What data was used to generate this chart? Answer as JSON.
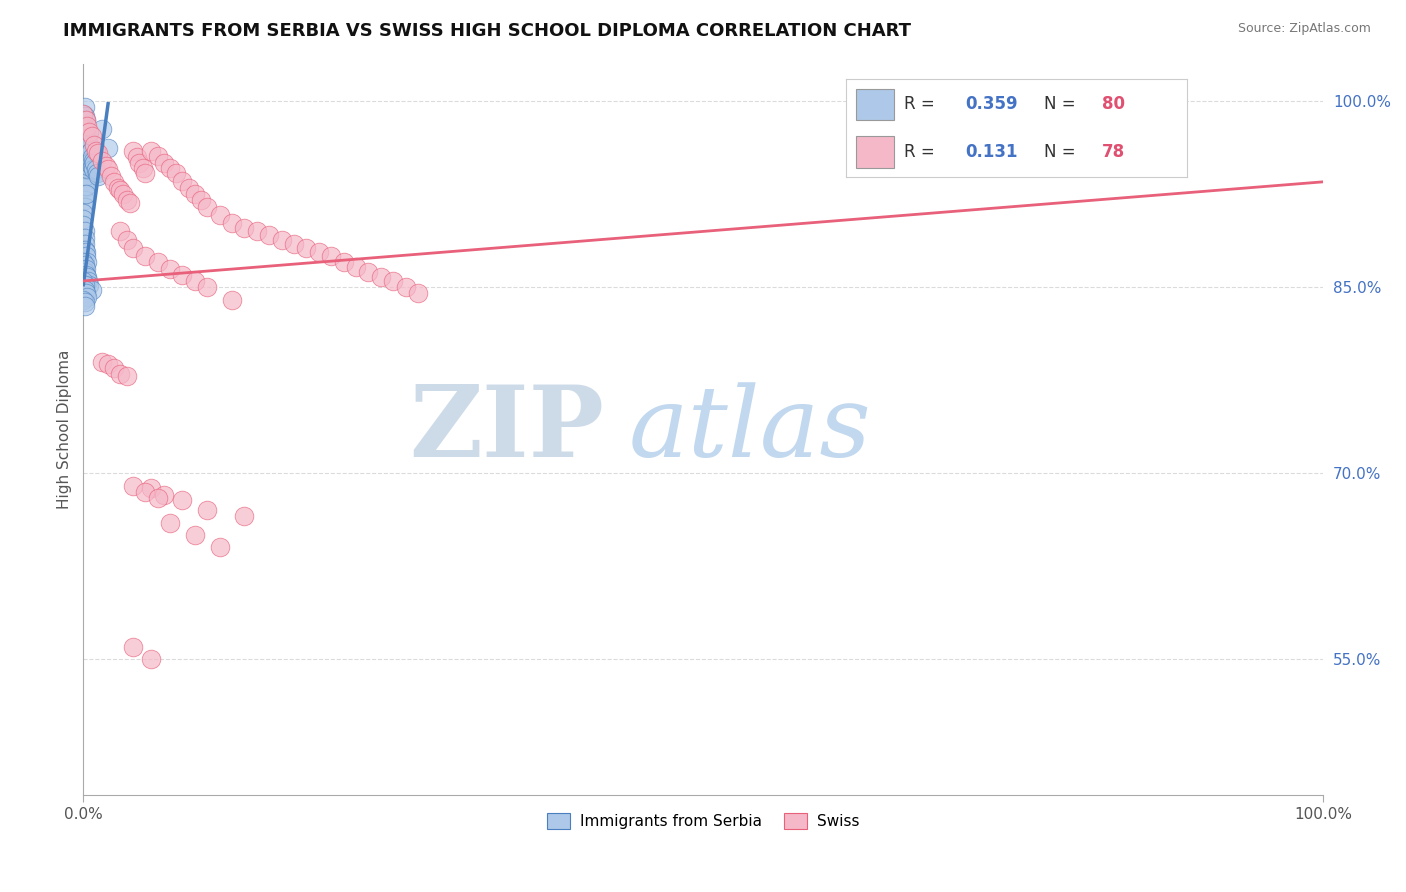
{
  "title": "IMMIGRANTS FROM SERBIA VS SWISS HIGH SCHOOL DIPLOMA CORRELATION CHART",
  "source": "Source: ZipAtlas.com",
  "ylabel": "High School Diploma",
  "xlim": [
    0.0,
    1.0
  ],
  "ylim": [
    0.44,
    1.03
  ],
  "ytick_positions": [
    0.55,
    0.7,
    0.85,
    1.0
  ],
  "ytick_labels": [
    "55.0%",
    "70.0%",
    "85.0%",
    "100.0%"
  ],
  "legend_entries": [
    {
      "label": "Immigrants from Serbia",
      "color": "#adc8e8",
      "R": "0.359",
      "N": "80"
    },
    {
      "label": "Swiss",
      "color": "#f5b8c8",
      "R": "0.131",
      "N": "78"
    }
  ],
  "blue_scatter_x": [
    0.0,
    0.0,
    0.001,
    0.001,
    0.001,
    0.001,
    0.001,
    0.001,
    0.001,
    0.001,
    0.001,
    0.001,
    0.001,
    0.001,
    0.001,
    0.001,
    0.001,
    0.001,
    0.001,
    0.002,
    0.002,
    0.002,
    0.002,
    0.002,
    0.002,
    0.002,
    0.002,
    0.002,
    0.003,
    0.003,
    0.003,
    0.003,
    0.003,
    0.004,
    0.004,
    0.004,
    0.004,
    0.005,
    0.005,
    0.005,
    0.006,
    0.006,
    0.007,
    0.007,
    0.008,
    0.008,
    0.009,
    0.01,
    0.011,
    0.012,
    0.0,
    0.0,
    0.0,
    0.001,
    0.001,
    0.001,
    0.001,
    0.002,
    0.002,
    0.003,
    0.0,
    0.0,
    0.001,
    0.001,
    0.002,
    0.002,
    0.003,
    0.004,
    0.005,
    0.007,
    0.0,
    0.001,
    0.001,
    0.002,
    0.003,
    0.0,
    0.001,
    0.001,
    0.02,
    0.015
  ],
  "blue_scatter_y": [
    0.99,
    0.985,
    0.995,
    0.988,
    0.98,
    0.975,
    0.972,
    0.968,
    0.965,
    0.96,
    0.955,
    0.95,
    0.945,
    0.94,
    0.935,
    0.93,
    0.925,
    0.92,
    0.915,
    0.985,
    0.978,
    0.97,
    0.962,
    0.955,
    0.948,
    0.94,
    0.932,
    0.925,
    0.975,
    0.968,
    0.96,
    0.952,
    0.945,
    0.97,
    0.963,
    0.956,
    0.948,
    0.965,
    0.958,
    0.95,
    0.96,
    0.952,
    0.955,
    0.948,
    0.952,
    0.945,
    0.95,
    0.945,
    0.942,
    0.94,
    0.91,
    0.905,
    0.9,
    0.895,
    0.89,
    0.885,
    0.88,
    0.878,
    0.875,
    0.87,
    0.87,
    0.865,
    0.868,
    0.862,
    0.865,
    0.86,
    0.858,
    0.855,
    0.852,
    0.848,
    0.855,
    0.852,
    0.848,
    0.845,
    0.842,
    0.84,
    0.838,
    0.835,
    0.962,
    0.978
  ],
  "pink_scatter_x": [
    0.0,
    0.002,
    0.003,
    0.005,
    0.007,
    0.009,
    0.01,
    0.012,
    0.015,
    0.018,
    0.02,
    0.022,
    0.025,
    0.028,
    0.03,
    0.032,
    0.035,
    0.038,
    0.04,
    0.043,
    0.045,
    0.048,
    0.05,
    0.055,
    0.06,
    0.065,
    0.07,
    0.075,
    0.08,
    0.085,
    0.09,
    0.095,
    0.1,
    0.11,
    0.12,
    0.13,
    0.14,
    0.15,
    0.16,
    0.17,
    0.18,
    0.19,
    0.2,
    0.21,
    0.22,
    0.23,
    0.24,
    0.25,
    0.26,
    0.27,
    0.03,
    0.035,
    0.04,
    0.05,
    0.06,
    0.07,
    0.08,
    0.09,
    0.1,
    0.12,
    0.015,
    0.02,
    0.025,
    0.03,
    0.035,
    0.055,
    0.065,
    0.08,
    0.1,
    0.13,
    0.04,
    0.05,
    0.06,
    0.07,
    0.09,
    0.11,
    0.04,
    0.055
  ],
  "pink_scatter_y": [
    0.99,
    0.985,
    0.98,
    0.975,
    0.972,
    0.965,
    0.96,
    0.958,
    0.952,
    0.948,
    0.945,
    0.94,
    0.935,
    0.93,
    0.928,
    0.925,
    0.92,
    0.918,
    0.96,
    0.955,
    0.95,
    0.946,
    0.942,
    0.96,
    0.956,
    0.95,
    0.946,
    0.942,
    0.936,
    0.93,
    0.925,
    0.92,
    0.915,
    0.908,
    0.902,
    0.898,
    0.895,
    0.892,
    0.888,
    0.885,
    0.882,
    0.878,
    0.875,
    0.87,
    0.866,
    0.862,
    0.858,
    0.855,
    0.85,
    0.845,
    0.895,
    0.888,
    0.882,
    0.875,
    0.87,
    0.865,
    0.86,
    0.855,
    0.85,
    0.84,
    0.79,
    0.788,
    0.785,
    0.78,
    0.778,
    0.688,
    0.682,
    0.678,
    0.67,
    0.665,
    0.69,
    0.685,
    0.68,
    0.66,
    0.65,
    0.64,
    0.56,
    0.55
  ],
  "blue_line_x": [
    0.0,
    0.02
  ],
  "blue_line_y": [
    0.852,
    0.998
  ],
  "pink_line_x": [
    0.0,
    1.0
  ],
  "pink_line_y": [
    0.855,
    0.935
  ],
  "blue_color": "#4a7fbf",
  "pink_color": "#e8607a",
  "blue_fill": "#adc8e8",
  "pink_fill": "#f5b8c8",
  "title_fontsize": 13,
  "axis_label_fontsize": 11,
  "tick_fontsize": 11,
  "watermark_zip": "ZIP",
  "watermark_atlas": "atlas",
  "watermark_color_zip": "#c5d5e5",
  "watermark_color_atlas": "#a8c8e8",
  "background_color": "#ffffff",
  "grid_color": "#cccccc"
}
